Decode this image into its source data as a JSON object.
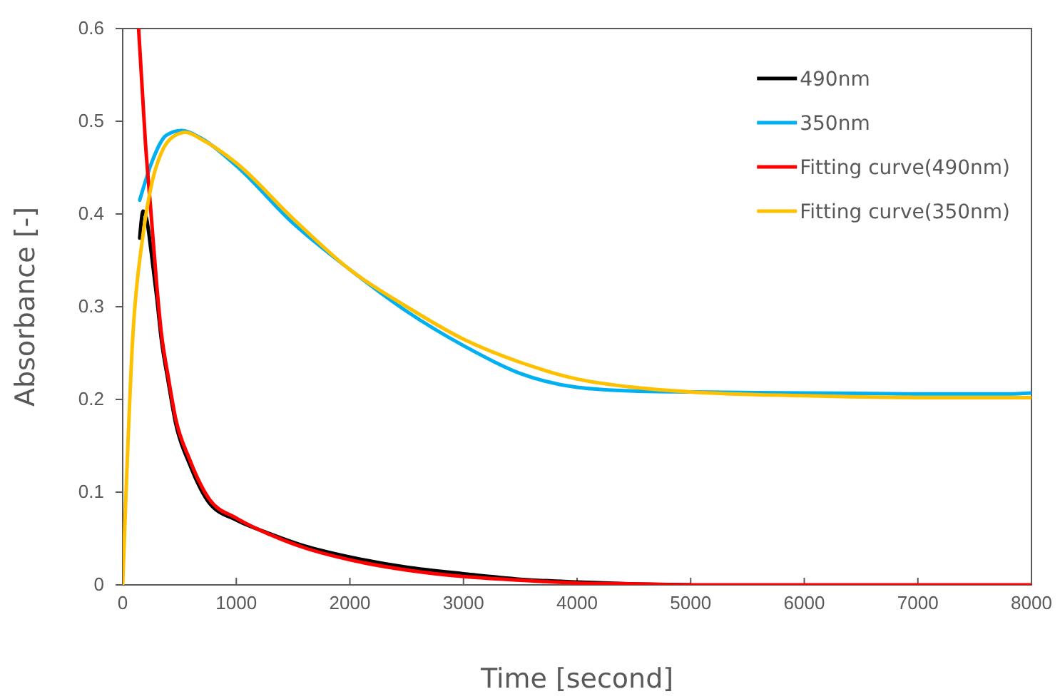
{
  "chart_data": {
    "type": "line",
    "xlabel": "Time  [second]",
    "ylabel": "Absorbance [-]",
    "xlim": [
      0,
      8000
    ],
    "ylim": [
      0,
      0.6
    ],
    "xticks": [
      0,
      1000,
      2000,
      3000,
      4000,
      5000,
      6000,
      7000,
      8000
    ],
    "yticks": [
      0,
      0.1,
      0.2,
      0.3,
      0.4,
      0.5,
      0.6
    ],
    "grid": false,
    "legend": "top right",
    "marker": "none",
    "line_style": "solid",
    "series": [
      {
        "name": "490nm",
        "color": "#000000",
        "x": [
          150,
          180,
          210,
          250,
          300,
          340,
          400,
          465,
          590,
          765,
          1000,
          1300,
          1600,
          2000,
          2500,
          3000,
          3500,
          4000,
          4500,
          5000
        ],
        "values": [
          0.374,
          0.403,
          0.395,
          0.36,
          0.31,
          0.265,
          0.22,
          0.175,
          0.13,
          0.088,
          0.07,
          0.055,
          0.042,
          0.03,
          0.019,
          0.012,
          0.006,
          0.003,
          0.001,
          0.0
        ]
      },
      {
        "name": "350nm",
        "color": "#00b0f0",
        "x": [
          150,
          260,
          385,
          515,
          700,
          1000,
          1500,
          2000,
          2500,
          3000,
          3500,
          4000,
          4500,
          5000,
          6000,
          7000,
          7800,
          8000
        ],
        "values": [
          0.415,
          0.457,
          0.485,
          0.49,
          0.481,
          0.452,
          0.39,
          0.34,
          0.295,
          0.258,
          0.228,
          0.213,
          0.209,
          0.208,
          0.207,
          0.206,
          0.206,
          0.207
        ]
      },
      {
        "name": "Fitting curve(490nm)",
        "color": "#ff0000",
        "x": [
          140,
          200,
          250,
          300,
          340,
          400,
          465,
          590,
          765,
          1000,
          1300,
          1600,
          2000,
          2500,
          3000,
          3500,
          4000,
          4500,
          5000,
          6000,
          7000,
          8000
        ],
        "values": [
          0.6,
          0.477,
          0.4,
          0.323,
          0.272,
          0.225,
          0.18,
          0.135,
          0.092,
          0.072,
          0.054,
          0.04,
          0.027,
          0.016,
          0.009,
          0.005,
          0.002,
          0.001,
          0.0,
          0.0,
          0.0,
          0.0
        ]
      },
      {
        "name": "Fitting curve(350nm)",
        "color": "#ffc000",
        "x": [
          0,
          90,
          175,
          260,
          340,
          450,
          553,
          700,
          1000,
          1500,
          2000,
          2500,
          3000,
          3500,
          4000,
          4500,
          5000,
          6000,
          7000,
          8000
        ],
        "values": [
          0.0,
          0.27,
          0.374,
          0.435,
          0.466,
          0.484,
          0.488,
          0.48,
          0.455,
          0.395,
          0.34,
          0.3,
          0.265,
          0.24,
          0.222,
          0.213,
          0.208,
          0.204,
          0.202,
          0.202
        ]
      }
    ]
  }
}
